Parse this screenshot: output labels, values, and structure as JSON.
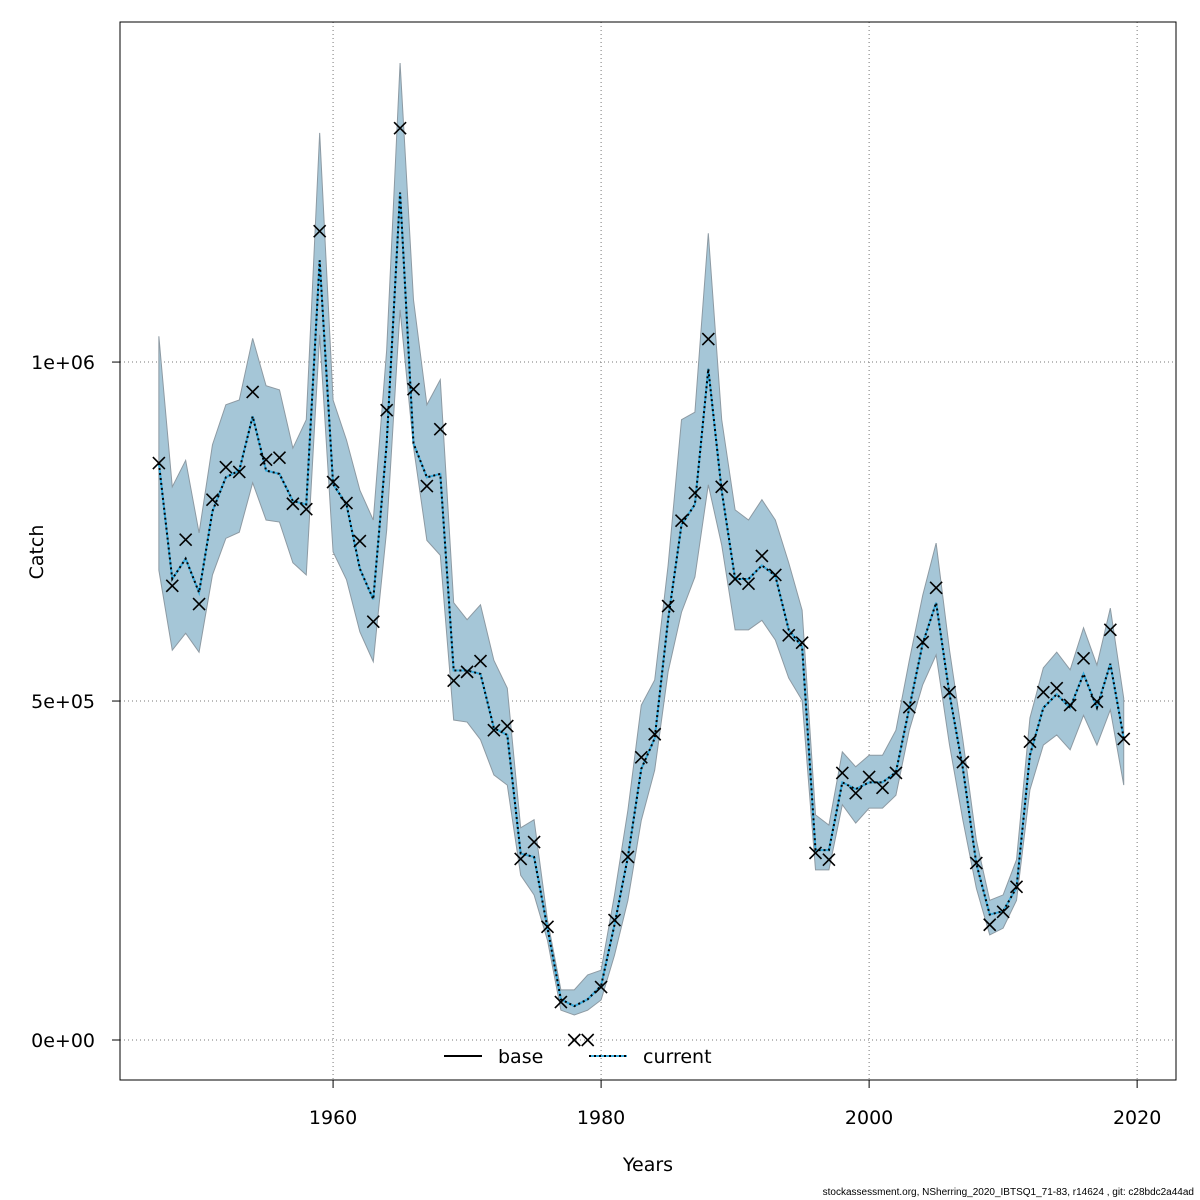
{
  "chart_data": {
    "type": "line",
    "xlabel": "Years",
    "ylabel": "Catch",
    "xlim": [
      1944.1,
      2022.9
    ],
    "ylim": [
      -59000,
      1501600
    ],
    "x_ticks": [
      1960,
      1980,
      2000,
      2020
    ],
    "x_tick_labels": [
      "1960",
      "1980",
      "2000",
      "2020"
    ],
    "y_ticks": [
      0,
      500000,
      1000000
    ],
    "y_tick_labels": [
      "0e+00",
      "5e+05",
      "1e+06"
    ],
    "grid": true,
    "legend": {
      "placement": "bottom",
      "entries": [
        "base",
        "current"
      ]
    },
    "colors": {
      "band": "#a5c6d7",
      "band_edge": "#8d9aa3",
      "base_line": "#000000",
      "current_line": "#3aaee0",
      "observed_marker": "#000000"
    },
    "years": [
      1947,
      1948,
      1949,
      1950,
      1951,
      1952,
      1953,
      1954,
      1955,
      1956,
      1957,
      1958,
      1959,
      1960,
      1961,
      1962,
      1963,
      1964,
      1965,
      1966,
      1967,
      1968,
      1969,
      1970,
      1971,
      1972,
      1973,
      1974,
      1975,
      1976,
      1977,
      1978,
      1979,
      1980,
      1981,
      1982,
      1983,
      1984,
      1985,
      1986,
      1987,
      1988,
      1989,
      1990,
      1991,
      1992,
      1993,
      1994,
      1995,
      1996,
      1997,
      1998,
      1999,
      2000,
      2001,
      2002,
      2003,
      2004,
      2005,
      2006,
      2007,
      2008,
      2009,
      2010,
      2011,
      2012,
      2013,
      2014,
      2015,
      2016,
      2017,
      2018,
      2019
    ],
    "observed": [
      851000,
      670000,
      738000,
      643000,
      797000,
      845000,
      838000,
      956000,
      856000,
      859000,
      791000,
      783000,
      1193000,
      823000,
      792000,
      736000,
      617000,
      929000,
      1345000,
      960000,
      817000,
      901000,
      530000,
      543000,
      559000,
      457000,
      463000,
      267000,
      292000,
      167000,
      56000,
      0,
      0,
      78000,
      177000,
      270000,
      417000,
      451000,
      640000,
      766000,
      807000,
      1034000,
      816000,
      680000,
      673000,
      714000,
      686000,
      597000,
      586000,
      276000,
      266000,
      394000,
      364000,
      388000,
      372000,
      394000,
      491000,
      587000,
      667000,
      513000,
      410000,
      261000,
      170000,
      189000,
      226000,
      440000,
      513000,
      519000,
      494000,
      563000,
      499000,
      605000,
      444000
    ],
    "series": [
      {
        "name": "base",
        "values": [
          851000,
          680000,
          710000,
          660000,
          780000,
          830000,
          840000,
          920000,
          840000,
          835000,
          795000,
          790000,
          1150000,
          820000,
          790000,
          695000,
          650000,
          880000,
          1250000,
          880000,
          830000,
          835000,
          545000,
          545000,
          540000,
          460000,
          450000,
          275000,
          270000,
          165000,
          60000,
          50000,
          60000,
          80000,
          170000,
          270000,
          400000,
          445000,
          620000,
          760000,
          790000,
          990000,
          810000,
          680000,
          680000,
          700000,
          685000,
          605000,
          580000,
          280000,
          280000,
          380000,
          370000,
          380000,
          380000,
          395000,
          490000,
          585000,
          645000,
          510000,
          400000,
          260000,
          185000,
          190000,
          225000,
          420000,
          490000,
          510000,
          490000,
          540000,
          490000,
          555000,
          445000
        ]
      },
      {
        "name": "current",
        "values": [
          851000,
          680000,
          710000,
          660000,
          780000,
          830000,
          840000,
          920000,
          840000,
          835000,
          795000,
          790000,
          1150000,
          820000,
          790000,
          695000,
          650000,
          880000,
          1250000,
          880000,
          830000,
          835000,
          545000,
          545000,
          540000,
          460000,
          450000,
          275000,
          270000,
          165000,
          60000,
          50000,
          60000,
          80000,
          170000,
          270000,
          400000,
          445000,
          620000,
          760000,
          790000,
          990000,
          810000,
          680000,
          680000,
          700000,
          685000,
          605000,
          580000,
          280000,
          280000,
          380000,
          370000,
          380000,
          380000,
          395000,
          490000,
          585000,
          645000,
          510000,
          400000,
          260000,
          185000,
          190000,
          225000,
          420000,
          490000,
          510000,
          490000,
          540000,
          490000,
          555000,
          445000
        ],
        "upper": [
          1038000,
          816000,
          855000,
          748000,
          878000,
          937000,
          944000,
          1035000,
          965000,
          959000,
          873000,
          915000,
          1338000,
          944000,
          885000,
          811000,
          767000,
          1018000,
          1441000,
          1092000,
          937000,
          974000,
          645000,
          620000,
          642000,
          560000,
          519000,
          313000,
          325000,
          177000,
          74000,
          74000,
          96000,
          103000,
          214000,
          339000,
          494000,
          531000,
          700000,
          915000,
          926000,
          1190000,
          915000,
          782000,
          767000,
          797000,
          767000,
          704000,
          634000,
          332000,
          317000,
          425000,
          403000,
          420000,
          420000,
          457000,
          560000,
          656000,
          733000,
          575000,
          442000,
          295000,
          206000,
          214000,
          266000,
          475000,
          549000,
          572000,
          546000,
          608000,
          553000,
          637000,
          504000
        ],
        "lower": [
          693000,
          575000,
          600000,
          572000,
          686000,
          740000,
          749000,
          822000,
          767000,
          764000,
          704000,
          686000,
          1040000,
          720000,
          679000,
          602000,
          558000,
          752000,
          1077000,
          875000,
          737000,
          715000,
          472000,
          469000,
          443000,
          391000,
          376000,
          243000,
          214000,
          147000,
          44000,
          37000,
          44000,
          59000,
          125000,
          206000,
          324000,
          398000,
          543000,
          631000,
          683000,
          819000,
          730000,
          605000,
          605000,
          619000,
          590000,
          534000,
          501000,
          251000,
          251000,
          347000,
          320000,
          342000,
          342000,
          361000,
          457000,
          524000,
          568000,
          435000,
          324000,
          224000,
          155000,
          165000,
          206000,
          369000,
          435000,
          450000,
          428000,
          479000,
          435000,
          487000,
          376000
        ]
      }
    ]
  },
  "footer": "stockassessment.org, NSherring_2020_IBTSQ1_71-83, r14624 , git: c28bdc2a44ad"
}
